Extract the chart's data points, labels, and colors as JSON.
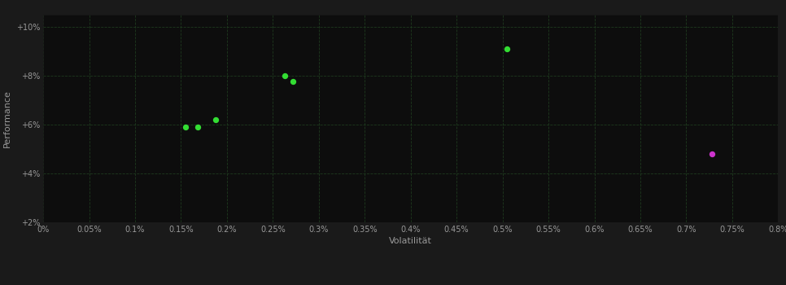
{
  "background_color": "#1a1a1a",
  "plot_bg_color": "#0d0d0d",
  "grid_color": "#1e3a1e",
  "text_color": "#999999",
  "xlabel": "Volatilität",
  "ylabel": "Performance",
  "xlim": [
    0.0,
    0.008
  ],
  "ylim": [
    0.02,
    0.105
  ],
  "xtick_labels": [
    "0%",
    "0.05%",
    "0.1%",
    "0.15%",
    "0.2%",
    "0.25%",
    "0.3%",
    "0.35%",
    "0.4%",
    "0.45%",
    "0.5%",
    "0.55%",
    "0.6%",
    "0.65%",
    "0.7%",
    "0.75%",
    "0.8%"
  ],
  "xtick_values": [
    0.0,
    0.0005,
    0.001,
    0.0015,
    0.002,
    0.0025,
    0.003,
    0.0035,
    0.004,
    0.0045,
    0.005,
    0.0055,
    0.006,
    0.0065,
    0.007,
    0.0075,
    0.008
  ],
  "ytick_labels": [
    "+2%",
    "+4%",
    "+6%",
    "+8%",
    "+10%"
  ],
  "ytick_values": [
    0.02,
    0.04,
    0.06,
    0.08,
    0.1
  ],
  "green_points": [
    [
      0.00155,
      0.059
    ],
    [
      0.00168,
      0.059
    ],
    [
      0.00188,
      0.062
    ],
    [
      0.00263,
      0.08
    ],
    [
      0.00272,
      0.0775
    ],
    [
      0.00505,
      0.091
    ]
  ],
  "magenta_points": [
    [
      0.00728,
      0.048
    ]
  ],
  "green_color": "#33dd33",
  "magenta_color": "#cc33cc",
  "marker_size": 28
}
